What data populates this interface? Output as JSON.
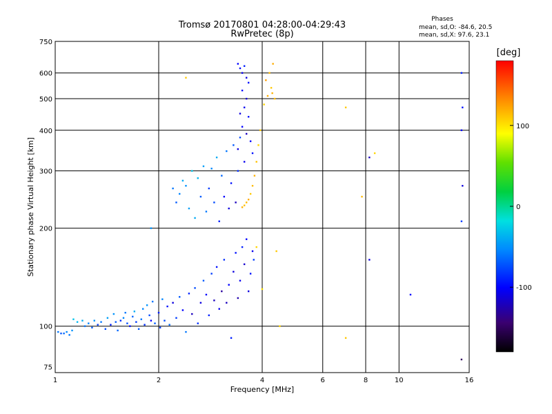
{
  "chart_data": {
    "type": "scatter",
    "title": "Tromsø 20170801 04:28:00-04:29:43",
    "subtitle": "RwPretec (8p)",
    "xlabel": "Frequency [MHz]",
    "ylabel": "Stationary phase Virtual Height [km]",
    "x_scale": "log",
    "y_scale": "log",
    "xlim": [
      1,
      16
    ],
    "ylim": [
      72,
      750
    ],
    "x_ticks": [
      1,
      2,
      4,
      6,
      8,
      10,
      16
    ],
    "y_ticks": [
      75,
      100,
      200,
      300,
      400,
      500,
      600,
      750
    ],
    "grid": true,
    "stats_header": "Phases",
    "stats_o": "mean, sd,O: -84.6, 20.5",
    "stats_x": "mean, sd,X:  97.6, 23.1",
    "colorbar": {
      "label": "[deg]",
      "range": [
        -180,
        180
      ],
      "ticks": [
        100,
        0,
        -100
      ]
    },
    "series": [
      {
        "points": [
          [
            1.02,
            96,
            -60
          ],
          [
            1.04,
            95,
            -70
          ],
          [
            1.06,
            95,
            -65
          ],
          [
            1.08,
            96,
            -55
          ],
          [
            1.1,
            94,
            -60
          ],
          [
            1.12,
            97,
            -50
          ],
          [
            1.13,
            105,
            -30
          ],
          [
            1.16,
            103,
            -35
          ],
          [
            1.2,
            104,
            -40
          ],
          [
            1.22,
            100,
            -60
          ],
          [
            1.25,
            102,
            -55
          ],
          [
            1.28,
            99,
            -70
          ],
          [
            1.3,
            104,
            -50
          ],
          [
            1.33,
            101,
            -80
          ],
          [
            1.36,
            103,
            -60
          ],
          [
            1.4,
            98,
            -75
          ],
          [
            1.42,
            106,
            -45
          ],
          [
            1.45,
            101,
            -90
          ],
          [
            1.48,
            109,
            -50
          ],
          [
            1.5,
            103,
            -70
          ],
          [
            1.52,
            97,
            -65
          ],
          [
            1.55,
            104,
            -85
          ],
          [
            1.58,
            106,
            -55
          ],
          [
            1.6,
            110,
            -60
          ],
          [
            1.62,
            102,
            -75
          ],
          [
            1.65,
            100,
            -95
          ],
          [
            1.68,
            107,
            -65
          ],
          [
            1.7,
            111,
            -40
          ],
          [
            1.72,
            103,
            -80
          ],
          [
            1.75,
            98,
            -70
          ],
          [
            1.78,
            105,
            -60
          ],
          [
            1.8,
            113,
            -55
          ],
          [
            1.82,
            101,
            -85
          ],
          [
            1.85,
            116,
            -50
          ],
          [
            1.88,
            108,
            -75
          ],
          [
            1.9,
            104,
            -100
          ],
          [
            1.92,
            119,
            -60
          ],
          [
            1.95,
            102,
            -70
          ],
          [
            2.0,
            110,
            -90
          ],
          [
            2.02,
            99,
            -80
          ],
          [
            2.05,
            121,
            -55
          ],
          [
            2.08,
            104,
            -75
          ],
          [
            2.12,
            115,
            -95
          ],
          [
            2.15,
            101,
            -65
          ],
          [
            2.2,
            118,
            -110
          ],
          [
            2.25,
            106,
            -80
          ],
          [
            2.3,
            123,
            -70
          ],
          [
            2.35,
            112,
            -100
          ],
          [
            2.4,
            96,
            -60
          ],
          [
            2.45,
            126,
            -90
          ],
          [
            2.5,
            109,
            -120
          ],
          [
            2.55,
            131,
            -75
          ],
          [
            2.6,
            102,
            -85
          ],
          [
            2.65,
            118,
            -110
          ],
          [
            2.7,
            138,
            -70
          ],
          [
            2.75,
            125,
            -100
          ],
          [
            2.8,
            108,
            -90
          ],
          [
            2.85,
            145,
            -80
          ],
          [
            2.9,
            120,
            -120
          ],
          [
            2.95,
            152,
            -95
          ],
          [
            3.0,
            113,
            -105
          ],
          [
            3.05,
            128,
            -130
          ],
          [
            3.1,
            160,
            -85
          ],
          [
            3.15,
            118,
            -120
          ],
          [
            3.2,
            134,
            -100
          ],
          [
            3.25,
            92,
            -90
          ],
          [
            3.3,
            147,
            -110
          ],
          [
            3.35,
            168,
            -95
          ],
          [
            3.4,
            122,
            -125
          ],
          [
            3.45,
            138,
            -105
          ],
          [
            3.5,
            175,
            -90
          ],
          [
            3.55,
            155,
            -115
          ],
          [
            3.6,
            185,
            -100
          ],
          [
            3.65,
            128,
            -110
          ],
          [
            3.7,
            145,
            -95
          ],
          [
            3.75,
            170,
            -105
          ],
          [
            3.78,
            160,
            -80
          ],
          [
            2.2,
            265,
            -60
          ],
          [
            2.25,
            240,
            -70
          ],
          [
            2.3,
            255,
            -55
          ],
          [
            2.35,
            280,
            -40
          ],
          [
            2.4,
            270,
            -50
          ],
          [
            2.45,
            230,
            -45
          ],
          [
            2.5,
            300,
            -30
          ],
          [
            2.55,
            215,
            -40
          ],
          [
            2.6,
            285,
            -35
          ],
          [
            2.65,
            250,
            -70
          ],
          [
            2.7,
            310,
            -45
          ],
          [
            2.75,
            225,
            -60
          ],
          [
            2.8,
            265,
            -80
          ],
          [
            2.85,
            305,
            -55
          ],
          [
            2.9,
            240,
            -75
          ],
          [
            2.95,
            330,
            -40
          ],
          [
            3.0,
            210,
            -90
          ],
          [
            3.05,
            290,
            -65
          ],
          [
            3.1,
            250,
            -100
          ],
          [
            3.15,
            345,
            -60
          ],
          [
            3.2,
            230,
            -110
          ],
          [
            3.25,
            275,
            -95
          ],
          [
            3.3,
            360,
            -70
          ],
          [
            3.35,
            240,
            -120
          ],
          [
            3.4,
            300,
            -85
          ],
          [
            3.45,
            380,
            -75
          ],
          [
            3.4,
            640,
            -100
          ],
          [
            3.45,
            620,
            -95
          ],
          [
            3.5,
            600,
            -105
          ],
          [
            3.55,
            630,
            -90
          ],
          [
            3.6,
            580,
            -110
          ],
          [
            3.65,
            560,
            -95
          ],
          [
            3.5,
            530,
            -100
          ],
          [
            3.6,
            500,
            -115
          ],
          [
            3.55,
            470,
            -105
          ],
          [
            3.45,
            450,
            -110
          ],
          [
            3.65,
            440,
            -95
          ],
          [
            3.5,
            410,
            -100
          ],
          [
            3.6,
            390,
            -120
          ],
          [
            3.7,
            370,
            -100
          ],
          [
            3.4,
            350,
            -110
          ],
          [
            3.75,
            340,
            -95
          ],
          [
            3.55,
            320,
            -105
          ],
          [
            2.4,
            580,
            110
          ],
          [
            4.3,
            640,
            120
          ],
          [
            4.2,
            600,
            115
          ],
          [
            4.1,
            570,
            125
          ],
          [
            4.25,
            540,
            110
          ],
          [
            4.15,
            510,
            120
          ],
          [
            4.35,
            500,
            115
          ],
          [
            4.05,
            480,
            105
          ],
          [
            4.28,
            520,
            118
          ],
          [
            3.95,
            400,
            110
          ],
          [
            3.9,
            360,
            105
          ],
          [
            3.85,
            320,
            112
          ],
          [
            3.8,
            290,
            118
          ],
          [
            3.75,
            270,
            115
          ],
          [
            3.7,
            255,
            110
          ],
          [
            3.65,
            245,
            120
          ],
          [
            3.6,
            240,
            115
          ],
          [
            3.55,
            235,
            112
          ],
          [
            3.5,
            232,
            118
          ],
          [
            3.85,
            175,
            105
          ],
          [
            4.4,
            170,
            110
          ],
          [
            4.0,
            130,
            100
          ],
          [
            4.5,
            100,
            105
          ],
          [
            7.0,
            470,
            110
          ],
          [
            8.5,
            340,
            105
          ],
          [
            7.8,
            250,
            115
          ],
          [
            7.0,
            92,
            110
          ],
          [
            1.9,
            200,
            -50
          ],
          [
            8.2,
            330,
            -120
          ],
          [
            8.2,
            160,
            -110
          ],
          [
            10.8,
            125,
            -100
          ],
          [
            15.2,
            600,
            -90
          ],
          [
            15.3,
            470,
            -95
          ],
          [
            15.2,
            400,
            -100
          ],
          [
            15.3,
            270,
            -110
          ],
          [
            15.2,
            210,
            -80
          ],
          [
            15.2,
            79,
            -150
          ]
        ]
      }
    ]
  }
}
